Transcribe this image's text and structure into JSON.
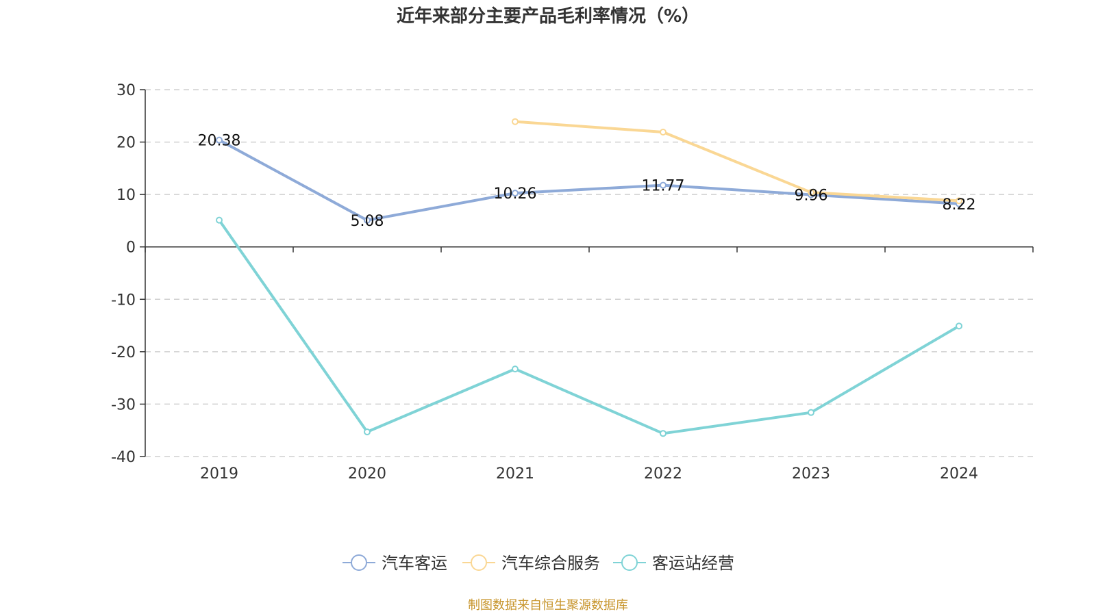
{
  "chart_data": {
    "type": "line",
    "title": "近年来部分主要产品毛利率情况（%）",
    "categories": [
      "2019",
      "2020",
      "2021",
      "2022",
      "2023",
      "2024"
    ],
    "ylim": [
      -40,
      30
    ],
    "yticks": [
      30,
      20,
      10,
      0,
      -10,
      -20,
      -30,
      -40
    ],
    "grid": true,
    "legend_position": "bottom",
    "series": [
      {
        "name": "汽车客运",
        "color": "#8eaad8",
        "values": [
          20.38,
          5.08,
          10.26,
          11.77,
          9.96,
          8.22
        ],
        "labels": [
          "20.38",
          "5.08",
          "10.26",
          "11.77",
          "9.96",
          "8.22"
        ]
      },
      {
        "name": "汽车综合服务",
        "color": "#fad794",
        "values": [
          null,
          null,
          23.9,
          21.9,
          10.4,
          8.8
        ],
        "labels": []
      },
      {
        "name": "客运站经营",
        "color": "#7fd3d6",
        "values": [
          5.1,
          -35.3,
          -23.3,
          -35.6,
          -31.6,
          -15.1
        ],
        "labels": []
      }
    ],
    "source": "制图数据来自恒生聚源数据库"
  }
}
